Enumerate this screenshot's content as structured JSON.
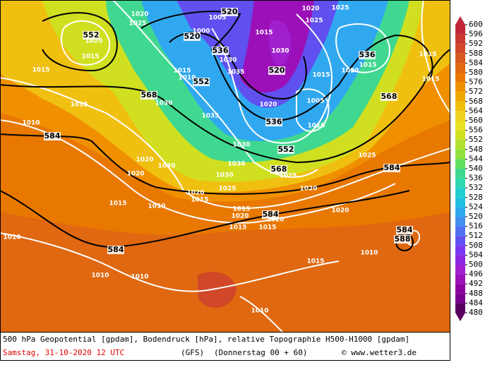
{
  "map": {
    "pressure_labels": [
      1020,
      1025,
      1005,
      1000,
      1020,
      1015,
      1015,
      1015,
      1010,
      1030,
      1030,
      1035,
      1030,
      1015,
      1025,
      1025,
      1020,
      1015,
      1020,
      1020,
      1005,
      1010,
      1015,
      1015,
      1015,
      1025,
      1020,
      1025,
      1030,
      1030,
      1025,
      1035,
      1030,
      1020,
      1030,
      1020,
      1020,
      1015,
      1015,
      1010,
      1015,
      1020,
      1020,
      1015,
      1015,
      1020,
      1010,
      1010,
      1010,
      1015,
      1010,
      1010,
      1015,
      1010
    ],
    "geopotential_labels": [
      520,
      520,
      552,
      584,
      568,
      536,
      520,
      536,
      552,
      536,
      568,
      584,
      568,
      584,
      584,
      588,
      584,
      552
    ],
    "colorbar": {
      "ticks": [
        600,
        596,
        592,
        588,
        584,
        580,
        576,
        572,
        568,
        564,
        560,
        556,
        552,
        548,
        544,
        540,
        536,
        532,
        528,
        524,
        520,
        516,
        512,
        508,
        504,
        500,
        496,
        492,
        488,
        484,
        480
      ],
      "colors": [
        "#c02838",
        "#c83830",
        "#d04828",
        "#d85820",
        "#e06810",
        "#e87800",
        "#f09000",
        "#f0a800",
        "#f0c010",
        "#f0d020",
        "#e8e020",
        "#d0e020",
        "#b0e030",
        "#90e040",
        "#60e060",
        "#40d890",
        "#30d8b0",
        "#20d0d0",
        "#20c0e0",
        "#30a8f0",
        "#4090f0",
        "#5070f0",
        "#6050f0",
        "#7a38f0",
        "#8c28e0",
        "#a020d0",
        "#9b10b8",
        "#8a00a0",
        "#7a0090",
        "#5a0060"
      ]
    }
  },
  "footer": {
    "description": "500 hPa Geopotential [gpdam], Bodendruck [hPa], relative Topographie H500-H1000 [gpdam]",
    "date": "Samstag, 31-10-2020  12 UTC",
    "model": "(GFS)",
    "run": "(Donnerstag 00 + 60)",
    "credit": "© www.wetter3.de"
  }
}
